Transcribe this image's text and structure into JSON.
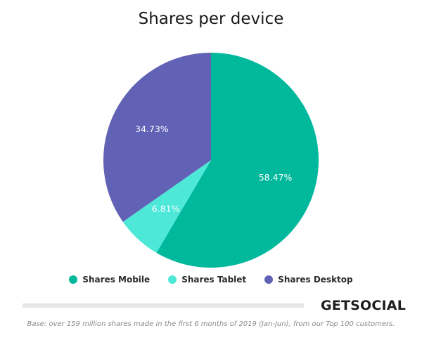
{
  "chart_data": {
    "type": "pie",
    "title": "Shares per device",
    "slices": [
      {
        "name": "Shares Mobile",
        "value": 58.47,
        "label": "58.47%",
        "color": "#00b89c"
      },
      {
        "name": "Shares Tablet",
        "value": 6.81,
        "label": "6.81%",
        "color": "#4ee8d8"
      },
      {
        "name": "Shares Desktop",
        "value": 34.73,
        "label": "34.73%",
        "color": "#6161b5"
      }
    ],
    "legend_position": "bottom"
  },
  "brand": "GETSOCIAL",
  "footnote": "Base: over 159 million shares made in the first 6 months of 2019 (Jan-Jun), from our Top 100 customers."
}
